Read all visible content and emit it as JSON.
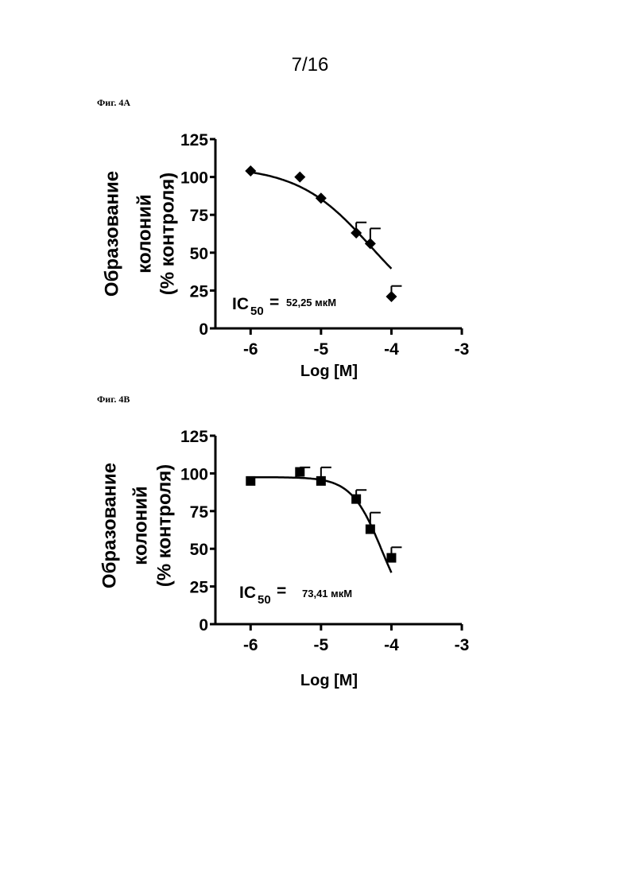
{
  "page": {
    "number": "7/16"
  },
  "chart_data": [
    {
      "type": "scatter",
      "figure_label": "Фиг. 4А",
      "marker": "diamond",
      "ylabel_lines": [
        "Образование",
        "колоний",
        "(% контроля)"
      ],
      "xlabel": "Log [M]",
      "xlim": [
        -6.5,
        -3
      ],
      "ylim": [
        0,
        125
      ],
      "xticks": [
        -6,
        -5,
        -4,
        -3
      ],
      "yticks": [
        0,
        25,
        50,
        75,
        100,
        125
      ],
      "xtick_labels": [
        "-6",
        "-5",
        "-4",
        "-3"
      ],
      "ytick_labels": [
        "0",
        "25",
        "50",
        "75",
        "100",
        "125"
      ],
      "x": [
        -6,
        -5.3,
        -5,
        -4.5,
        -4.3,
        -4
      ],
      "y": [
        104,
        100,
        86,
        63,
        56,
        21
      ],
      "error_upper": [
        0,
        0,
        0,
        7,
        10,
        7
      ],
      "fit_curve": {
        "type": "sigmoid",
        "top": 107,
        "bottom": 0,
        "log_ic50": -4.282,
        "hill": -0.83
      },
      "ic50_label": "IC",
      "ic50_sub": "50",
      "ic50_eq": "=",
      "ic50_value": "52,25 мкМ"
    },
    {
      "type": "scatter",
      "figure_label": "Фиг. 4B",
      "marker": "square",
      "ylabel_lines": [
        "Образование",
        "колоний",
        "(% контроля)"
      ],
      "xlabel": "Log [M]",
      "xlim": [
        -6.5,
        -3
      ],
      "ylim": [
        0,
        125
      ],
      "xticks": [
        -6,
        -5,
        -4,
        -3
      ],
      "yticks": [
        0,
        25,
        50,
        75,
        100,
        125
      ],
      "xtick_labels": [
        "-6",
        "-5",
        "-4",
        "-3"
      ],
      "ytick_labels": [
        "0",
        "25",
        "50",
        "75",
        "100",
        "125"
      ],
      "x": [
        -6,
        -5.3,
        -5,
        -4.5,
        -4.3,
        -4
      ],
      "y": [
        95,
        101,
        95,
        83,
        63,
        44
      ],
      "error_upper": [
        0,
        3,
        9,
        6,
        11,
        7
      ],
      "fit_curve": {
        "type": "sigmoid",
        "top": 97.5,
        "bottom": 0,
        "log_ic50": -4.134,
        "hill": -2.0
      },
      "ic50_label": "IC",
      "ic50_sub": "50",
      "ic50_eq": "=",
      "ic50_value": "73,41 мкМ"
    }
  ]
}
